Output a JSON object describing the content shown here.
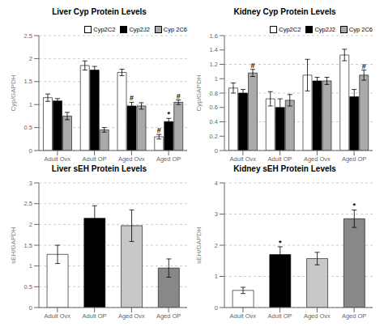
{
  "chart_data": [
    {
      "type": "bar",
      "title": "Liver Cyp Protein Levels",
      "y_label": "Cyp/GAPDH",
      "categories": [
        "Adult Ovx",
        "Adult OP",
        "Aged Ovx",
        "Aged OP"
      ],
      "series": [
        {
          "name": "Cyp2C2",
          "color": "white",
          "values": [
            1.15,
            1.85,
            1.7,
            0.3
          ],
          "errors": [
            0.08,
            0.1,
            0.07,
            0.05
          ]
        },
        {
          "name": "Cyp2J2",
          "color": "black",
          "values": [
            1.08,
            1.75,
            0.97,
            0.63
          ],
          "errors": [
            0.05,
            0.08,
            0.08,
            0.07
          ]
        },
        {
          "name": "Cyp 2C6",
          "color": "#aaaaaa",
          "values": [
            0.75,
            0.45,
            0.97,
            1.05
          ],
          "errors": [
            0.08,
            0.05,
            0.07,
            0.05
          ]
        }
      ],
      "ylim": [
        0,
        2.5
      ],
      "yticks": [
        0,
        0.5,
        1.0,
        1.5,
        2.0,
        2.5
      ],
      "legend": "upper right",
      "annotations": [
        {
          "category": "Aged OP",
          "series": "Cyp2C2",
          "text": "#"
        },
        {
          "category": "Aged Ovx",
          "series": "Cyp2J2",
          "text": "#"
        },
        {
          "category": "Aged OP",
          "series": "Cyp2J2",
          "text": "*"
        },
        {
          "category": "Aged OP",
          "series": "Cyp 2C6",
          "text": "#"
        }
      ]
    },
    {
      "type": "bar",
      "title": "Kidney Cyp Protein Levels",
      "y_label": "Cyp/GAPDH",
      "categories": [
        "Adult Ovx",
        "Adult OP",
        "Aged Ovx",
        "Aged OP"
      ],
      "series": [
        {
          "name": "Cyp2C2",
          "color": "white",
          "values": [
            0.87,
            0.72,
            1.05,
            1.33
          ],
          "errors": [
            0.07,
            0.1,
            0.22,
            0.08
          ]
        },
        {
          "name": "Cyp2J2",
          "color": "black",
          "values": [
            0.8,
            0.6,
            0.97,
            0.75
          ],
          "errors": [
            0.05,
            0.12,
            0.05,
            0.1
          ]
        },
        {
          "name": "Cyp 2C6",
          "color": "#aaaaaa",
          "values": [
            1.08,
            0.7,
            0.97,
            1.05
          ],
          "errors": [
            0.05,
            0.08,
            0.05,
            0.07
          ]
        }
      ],
      "ylim": [
        0,
        1.6
      ],
      "yticks": [
        0,
        0.2,
        0.4,
        0.6,
        0.8,
        1.0,
        1.2,
        1.4,
        1.6
      ],
      "legend": "upper right",
      "annotations": [
        {
          "category": "Adult Ovx",
          "series": "Cyp 2C6",
          "text": "#"
        },
        {
          "category": "Aged OP",
          "series": "Cyp 2C6",
          "text": "#"
        }
      ]
    },
    {
      "type": "bar",
      "title": "Liver sEH Protein Levels",
      "y_label": "sEH/GAPDH",
      "categories": [
        "Adult Ovx",
        "Adult OP",
        "Aged Ovx",
        "Aged OP"
      ],
      "values": [
        1.28,
        2.15,
        1.97,
        0.95
      ],
      "errors": [
        0.22,
        0.3,
        0.38,
        0.22
      ],
      "colors": [
        "white",
        "black",
        "#c8c8c8",
        "#888888"
      ],
      "ylim": [
        0,
        3.0
      ],
      "yticks": [
        0,
        0.5,
        1.0,
        1.5,
        2.0,
        2.5,
        3.0
      ]
    },
    {
      "type": "bar",
      "title": "Kidney sEH Protein Levels",
      "y_label": "sEH/GAPDH",
      "categories": [
        "Adult Ovx",
        "Adult OP",
        "Aged Ovx",
        "Aged OP"
      ],
      "values": [
        0.55,
        1.7,
        1.57,
        2.85
      ],
      "errors": [
        0.1,
        0.25,
        0.2,
        0.28
      ],
      "colors": [
        "white",
        "black",
        "#c8c8c8",
        "#888888"
      ],
      "ylim": [
        0,
        4.0
      ],
      "yticks": [
        0,
        1.0,
        2.0,
        3.0,
        4.0
      ],
      "annotations": [
        {
          "category": "Adult OP",
          "text": "*"
        },
        {
          "category": "Aged OP",
          "text": "*"
        }
      ]
    }
  ]
}
